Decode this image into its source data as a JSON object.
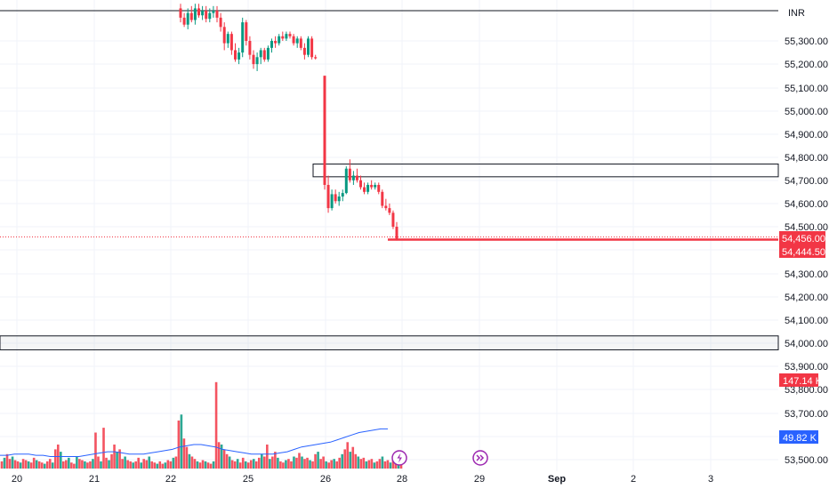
{
  "chart_data": {
    "type": "candlestick",
    "currency": "INR",
    "y_axis": {
      "range": [
        53490,
        55460
      ],
      "ticks": [
        "55,300.00",
        "55,200.00",
        "55,100.00",
        "55,000.00",
        "54,900.00",
        "54,800.00",
        "54,700.00",
        "54,600.00",
        "54,500.00",
        "54,300.00",
        "54,200.00",
        "54,100.00",
        "54,000.00",
        "53,900.00",
        "53,800.00",
        "53,700.00",
        "53,500.00"
      ]
    },
    "x_axis": {
      "labels": [
        {
          "text": "20",
          "bold": false
        },
        {
          "text": "21",
          "bold": false
        },
        {
          "text": "22",
          "bold": false
        },
        {
          "text": "25",
          "bold": false
        },
        {
          "text": "26",
          "bold": false
        },
        {
          "text": "28",
          "bold": false
        },
        {
          "text": "29",
          "bold": false
        },
        {
          "text": "Sep",
          "bold": true
        },
        {
          "text": "2",
          "bold": false
        },
        {
          "text": "3",
          "bold": false
        }
      ]
    },
    "price_tags": [
      {
        "label": "54,456.00",
        "value": 54456.0,
        "color": "#f23645"
      },
      {
        "label": "54,444.50",
        "value": 54444.5,
        "color": "#f23645"
      }
    ],
    "volume_tags": [
      {
        "label": "147.14 K",
        "color": "#f23645"
      },
      {
        "label": "49.82 K",
        "color": "#2962ff"
      }
    ],
    "zones": [
      {
        "low": 54715,
        "high": 54770
      },
      {
        "low": 53970,
        "high": 54030
      }
    ],
    "top_line": 55430,
    "last_close_line": 54444.5,
    "colors": {
      "up": "#089981",
      "down": "#f23645",
      "volume_ma": "#2962ff",
      "zone_border": "#131722"
    },
    "candles": [
      {
        "o": 55440,
        "h": 55460,
        "l": 55380,
        "c": 55400
      },
      {
        "o": 55400,
        "h": 55420,
        "l": 55360,
        "c": 55370
      },
      {
        "o": 55370,
        "h": 55440,
        "l": 55350,
        "c": 55420
      },
      {
        "o": 55420,
        "h": 55450,
        "l": 55380,
        "c": 55390
      },
      {
        "o": 55390,
        "h": 55460,
        "l": 55370,
        "c": 55440
      },
      {
        "o": 55440,
        "h": 55460,
        "l": 55400,
        "c": 55410
      },
      {
        "o": 55410,
        "h": 55450,
        "l": 55390,
        "c": 55430
      },
      {
        "o": 55430,
        "h": 55450,
        "l": 55380,
        "c": 55395
      },
      {
        "o": 55395,
        "h": 55440,
        "l": 55380,
        "c": 55420
      },
      {
        "o": 55420,
        "h": 55450,
        "l": 55400,
        "c": 55430
      },
      {
        "o": 55430,
        "h": 55450,
        "l": 55380,
        "c": 55400
      },
      {
        "o": 55400,
        "h": 55420,
        "l": 55340,
        "c": 55360
      },
      {
        "o": 55360,
        "h": 55380,
        "l": 55260,
        "c": 55290
      },
      {
        "o": 55290,
        "h": 55340,
        "l": 55270,
        "c": 55330
      },
      {
        "o": 55330,
        "h": 55340,
        "l": 55240,
        "c": 55260
      },
      {
        "o": 55260,
        "h": 55290,
        "l": 55210,
        "c": 55220
      },
      {
        "o": 55220,
        "h": 55270,
        "l": 55200,
        "c": 55250
      },
      {
        "o": 55250,
        "h": 55400,
        "l": 55230,
        "c": 55380
      },
      {
        "o": 55380,
        "h": 55390,
        "l": 55280,
        "c": 55300
      },
      {
        "o": 55300,
        "h": 55320,
        "l": 55220,
        "c": 55240
      },
      {
        "o": 55240,
        "h": 55260,
        "l": 55180,
        "c": 55200
      },
      {
        "o": 55200,
        "h": 55250,
        "l": 55170,
        "c": 55230
      },
      {
        "o": 55230,
        "h": 55270,
        "l": 55200,
        "c": 55260
      },
      {
        "o": 55260,
        "h": 55270,
        "l": 55210,
        "c": 55220
      },
      {
        "o": 55220,
        "h": 55280,
        "l": 55210,
        "c": 55270
      },
      {
        "o": 55270,
        "h": 55310,
        "l": 55250,
        "c": 55300
      },
      {
        "o": 55300,
        "h": 55320,
        "l": 55270,
        "c": 55290
      },
      {
        "o": 55290,
        "h": 55330,
        "l": 55280,
        "c": 55320
      },
      {
        "o": 55320,
        "h": 55340,
        "l": 55300,
        "c": 55310
      },
      {
        "o": 55310,
        "h": 55340,
        "l": 55300,
        "c": 55330
      },
      {
        "o": 55330,
        "h": 55340,
        "l": 55310,
        "c": 55320
      },
      {
        "o": 55320,
        "h": 55330,
        "l": 55280,
        "c": 55290
      },
      {
        "o": 55290,
        "h": 55320,
        "l": 55270,
        "c": 55310
      },
      {
        "o": 55310,
        "h": 55320,
        "l": 55260,
        "c": 55270
      },
      {
        "o": 55270,
        "h": 55290,
        "l": 55220,
        "c": 55240
      },
      {
        "o": 55240,
        "h": 55320,
        "l": 55230,
        "c": 55310
      },
      {
        "o": 55310,
        "h": 55320,
        "l": 55220,
        "c": 55230
      },
      {
        "o": 55230,
        "h": 55240,
        "l": 55220,
        "c": 55225
      },
      {
        "o": 55150,
        "h": 55150,
        "l": 54660,
        "c": 54680
      },
      {
        "o": 54680,
        "h": 54720,
        "l": 54560,
        "c": 54580
      },
      {
        "o": 54580,
        "h": 54660,
        "l": 54570,
        "c": 54640
      },
      {
        "o": 54640,
        "h": 54660,
        "l": 54600,
        "c": 54610
      },
      {
        "o": 54610,
        "h": 54650,
        "l": 54590,
        "c": 54630
      },
      {
        "o": 54630,
        "h": 54660,
        "l": 54610,
        "c": 54645
      },
      {
        "o": 54645,
        "h": 54760,
        "l": 54640,
        "c": 54750
      },
      {
        "o": 54750,
        "h": 54790,
        "l": 54690,
        "c": 54700
      },
      {
        "o": 54700,
        "h": 54740,
        "l": 54680,
        "c": 54720
      },
      {
        "o": 54720,
        "h": 54750,
        "l": 54690,
        "c": 54700
      },
      {
        "o": 54700,
        "h": 54720,
        "l": 54660,
        "c": 54670
      },
      {
        "o": 54670,
        "h": 54690,
        "l": 54640,
        "c": 54650
      },
      {
        "o": 54650,
        "h": 54690,
        "l": 54640,
        "c": 54680
      },
      {
        "o": 54680,
        "h": 54700,
        "l": 54660,
        "c": 54670
      },
      {
        "o": 54670,
        "h": 54690,
        "l": 54660,
        "c": 54680
      },
      {
        "o": 54680,
        "h": 54690,
        "l": 54640,
        "c": 54650
      },
      {
        "o": 54650,
        "h": 54660,
        "l": 54580,
        "c": 54590
      },
      {
        "o": 54590,
        "h": 54620,
        "l": 54570,
        "c": 54580
      },
      {
        "o": 54580,
        "h": 54600,
        "l": 54550,
        "c": 54560
      },
      {
        "o": 54560,
        "h": 54570,
        "l": 54490,
        "c": 54500
      },
      {
        "o": 54500,
        "h": 54520,
        "l": 54440,
        "c": 54445
      }
    ],
    "volume": [
      6,
      9,
      12,
      8,
      10,
      7,
      6,
      5,
      8,
      7,
      6,
      5,
      9,
      7,
      6,
      5,
      4,
      6,
      8,
      5,
      16,
      20,
      14,
      6,
      7,
      9,
      5,
      4,
      10,
      8,
      7,
      6,
      5,
      6,
      8,
      30,
      10,
      6,
      34,
      9,
      7,
      12,
      20,
      14,
      16,
      8,
      10,
      7,
      6,
      5,
      6,
      9,
      5,
      8,
      7,
      10,
      6,
      5,
      4,
      6,
      4,
      5,
      7,
      6,
      9,
      10,
      40,
      45,
      25,
      18,
      12,
      10,
      8,
      6,
      5,
      7,
      6,
      5,
      4,
      6,
      72,
      22,
      20,
      16,
      12,
      10,
      7,
      6,
      8,
      5,
      9,
      6,
      5,
      7,
      8,
      6,
      9,
      12,
      10,
      20,
      8,
      10,
      14,
      9,
      6,
      5,
      7,
      8,
      6,
      10,
      9,
      13,
      10,
      8,
      9,
      7,
      6,
      12,
      14,
      8,
      10,
      6,
      5,
      7,
      8,
      6,
      9,
      12,
      16,
      22,
      14,
      18,
      12,
      10,
      8,
      9,
      6,
      7,
      8,
      5,
      6,
      8,
      10,
      6,
      7,
      5,
      9,
      8,
      6,
      5
    ],
    "volume_ma": [
      11,
      11,
      12,
      12,
      12,
      11,
      11,
      10,
      10,
      10,
      10,
      10,
      11,
      12,
      13,
      14,
      14,
      13,
      12,
      12,
      12,
      13,
      14,
      15,
      16,
      18,
      19,
      20,
      20,
      19,
      18,
      16,
      15,
      14,
      13,
      12,
      12,
      12,
      12,
      13,
      14,
      16,
      18,
      19,
      20,
      21,
      22,
      24,
      26,
      28,
      30,
      31,
      32,
      33,
      33
    ],
    "volume_max": 100
  }
}
